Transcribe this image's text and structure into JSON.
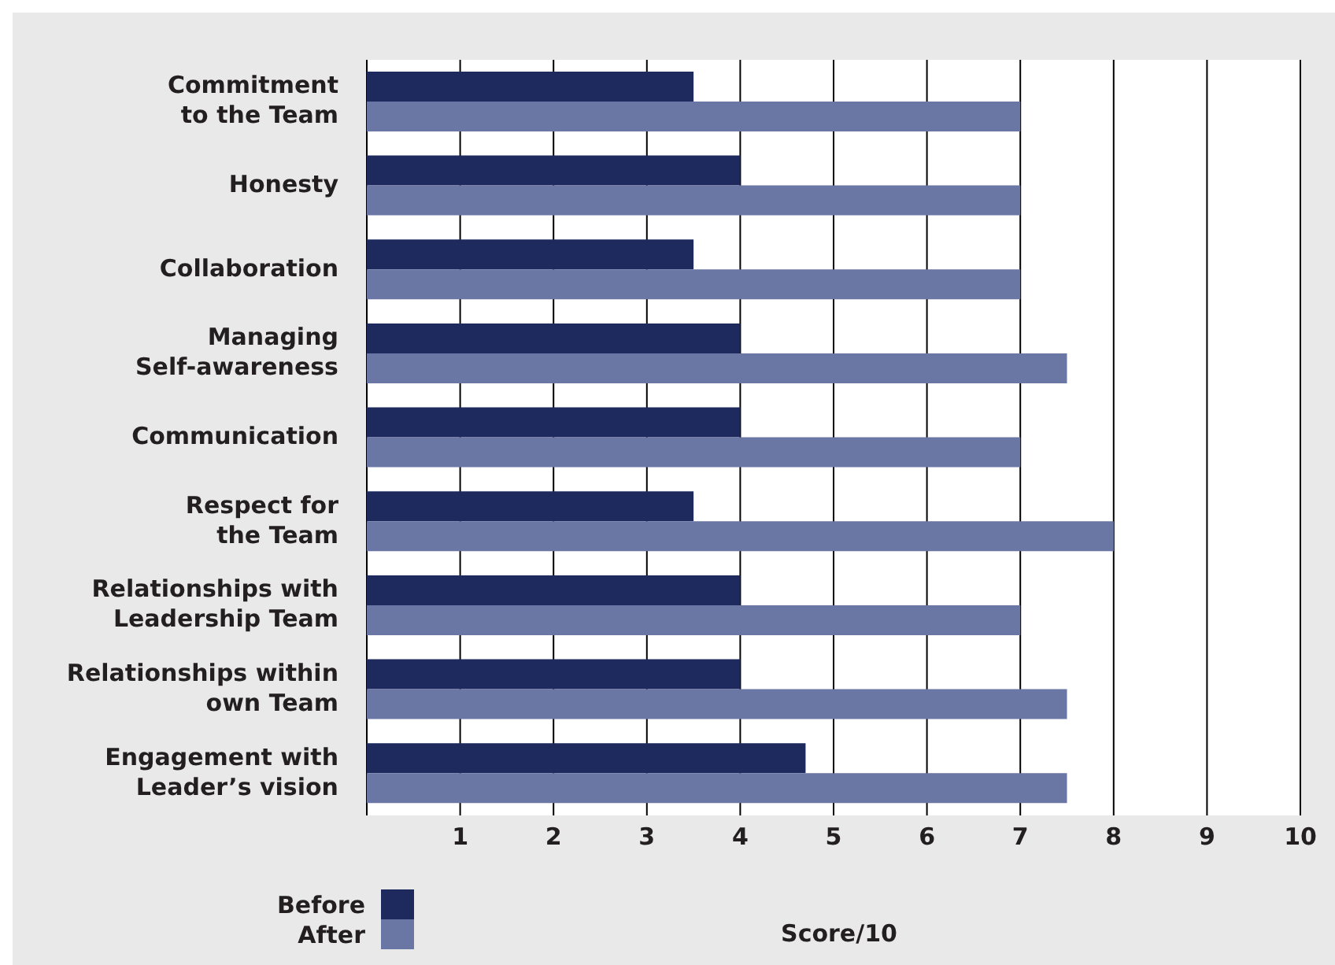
{
  "chart_data": {
    "type": "bar",
    "orientation": "horizontal",
    "xlabel": "Score/10",
    "categories": [
      "Commitment\nto the Team",
      "Honesty",
      "Collaboration",
      "Managing\nSelf-awareness",
      "Communication",
      "Respect for\nthe Team",
      "Relationships with\nLeadership Team",
      "Relationships within\nown Team",
      "Engagement with\nLeader’s vision"
    ],
    "series": [
      {
        "name": "Before",
        "color": "#1e2a5e",
        "values": [
          3.5,
          4,
          3.5,
          4,
          4,
          3.5,
          4,
          4,
          4.7
        ]
      },
      {
        "name": "After",
        "color": "#6a76a4",
        "values": [
          7,
          7,
          7,
          7.5,
          7,
          8,
          7,
          7.5,
          7.5
        ]
      }
    ],
    "xlim": [
      0,
      10
    ],
    "xticks": [
      1,
      2,
      3,
      4,
      5,
      6,
      7,
      8,
      9,
      10
    ],
    "grid": "x",
    "legend": "bottom left"
  }
}
